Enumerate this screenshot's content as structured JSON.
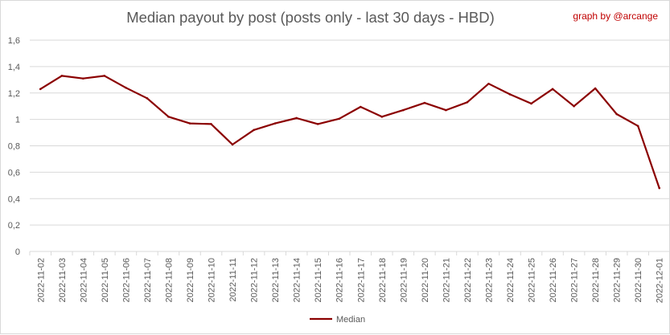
{
  "page": {
    "credit": "graph by @arcange"
  },
  "chart_data": {
    "type": "line",
    "title": "Median payout by post (posts only - last 30 days - HBD)",
    "xlabel": "",
    "ylabel": "",
    "ylim": [
      0,
      1.6
    ],
    "yticks": [
      "0",
      "0,2",
      "0,4",
      "0,6",
      "0,8",
      "1",
      "1,2",
      "1,4",
      "1,6"
    ],
    "grid": true,
    "legend_position": "bottom",
    "categories": [
      "2022-11-02",
      "2022-11-03",
      "2022-11-04",
      "2022-11-05",
      "2022-11-06",
      "2022-11-07",
      "2022-11-08",
      "2022-11-09",
      "2022-11-10",
      "2022-11-11",
      "2022-11-12",
      "2022-11-13",
      "2022-11-14",
      "2022-11-15",
      "2022-11-16",
      "2022-11-17",
      "2022-11-18",
      "2022-11-19",
      "2022-11-20",
      "2022-11-21",
      "2022-11-22",
      "2022-11-23",
      "2022-11-24",
      "2022-11-25",
      "2022-11-26",
      "2022-11-27",
      "2022-11-28",
      "2022-11-29",
      "2022-11-30",
      "2022-12-01"
    ],
    "series": [
      {
        "name": "Median",
        "color": "#8b0000",
        "values": [
          1.23,
          1.33,
          1.31,
          1.33,
          1.24,
          1.16,
          1.02,
          0.97,
          0.965,
          0.81,
          0.92,
          0.97,
          1.01,
          0.965,
          1.005,
          1.095,
          1.02,
          1.07,
          1.125,
          1.07,
          1.13,
          1.27,
          1.19,
          1.12,
          1.23,
          1.1,
          1.235,
          1.04,
          0.95,
          0.48
        ]
      }
    ]
  }
}
